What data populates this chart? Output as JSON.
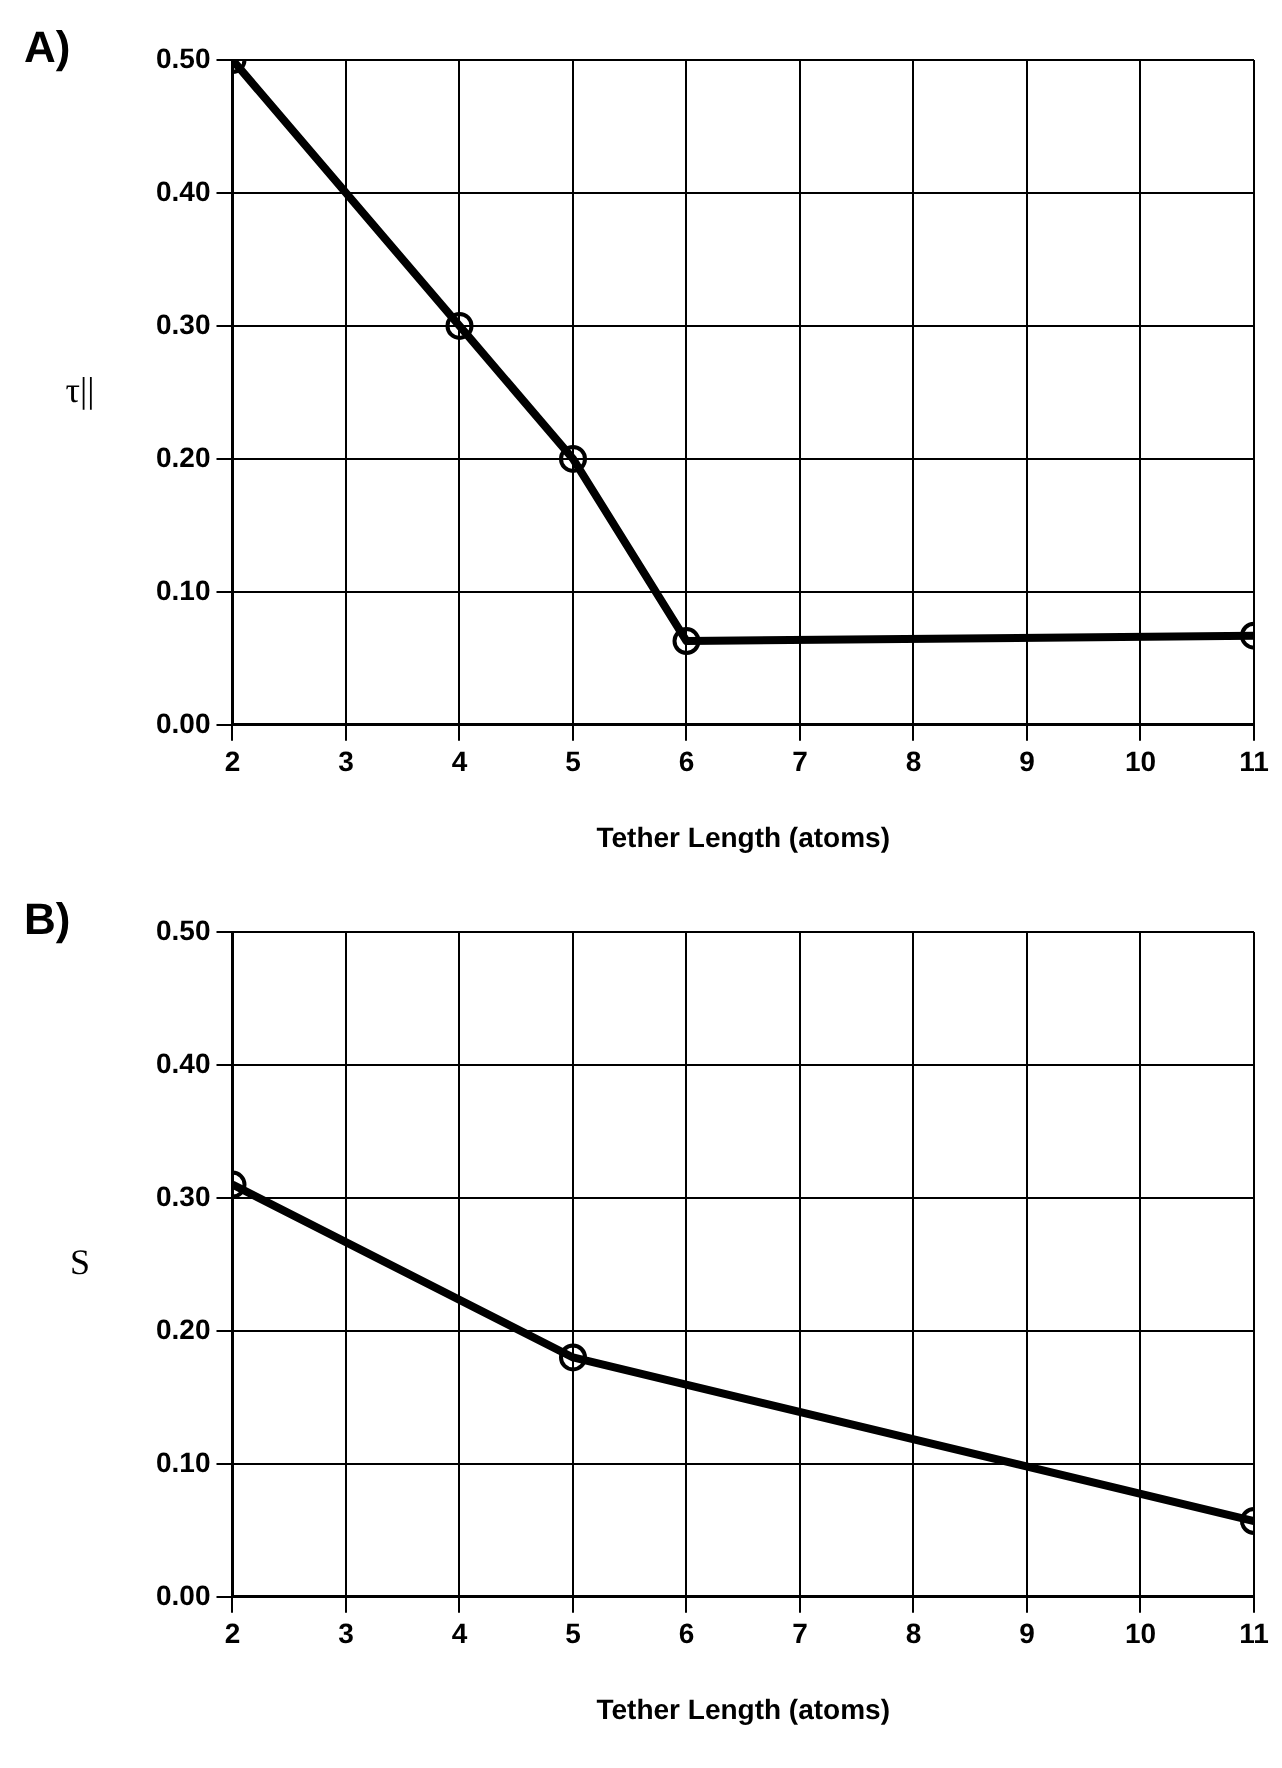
{
  "chart_data": [
    {
      "type": "line",
      "annotations": [
        "A)"
      ],
      "xlabel": "Tether Length (atoms)",
      "ylabel": "τ||",
      "x": [
        2,
        4,
        5,
        6,
        11
      ],
      "series": [
        {
          "color": "#000000",
          "values": [
            0.5,
            0.3,
            0.2,
            0.063,
            0.067
          ]
        }
      ],
      "xlim": [
        2,
        11
      ],
      "xticks": [
        2,
        3,
        4,
        5,
        6,
        7,
        8,
        9,
        10,
        11
      ],
      "ylim": [
        0,
        0.5
      ],
      "yticks": [
        {
          "value": 0,
          "label": "0.00"
        },
        {
          "value": 0.1,
          "label": "0.10"
        },
        {
          "value": 0.2,
          "label": "0.20"
        },
        {
          "value": 0.3,
          "label": "0.30"
        },
        {
          "value": 0.4,
          "label": "0.40"
        },
        {
          "value": 0.5,
          "label": "0.50"
        }
      ],
      "grid": true,
      "legend": false,
      "marker": "circle",
      "line_style": "solid"
    },
    {
      "type": "line",
      "annotations": [
        "B)"
      ],
      "xlabel": "Tether Length (atoms)",
      "ylabel": "S",
      "x": [
        2,
        5,
        11
      ],
      "series": [
        {
          "color": "#000000",
          "values": [
            0.31,
            0.18,
            0.057
          ]
        }
      ],
      "xlim": [
        2,
        11
      ],
      "xticks": [
        2,
        3,
        4,
        5,
        6,
        7,
        8,
        9,
        10,
        11
      ],
      "ylim": [
        0,
        0.5
      ],
      "yticks": [
        {
          "value": 0,
          "label": "0.00"
        },
        {
          "value": 0.1,
          "label": "0.10"
        },
        {
          "value": 0.2,
          "label": "0.20"
        },
        {
          "value": 0.3,
          "label": "0.30"
        },
        {
          "value": 0.4,
          "label": "0.40"
        },
        {
          "value": 0.5,
          "label": "0.50"
        }
      ],
      "grid": true,
      "legend": false,
      "marker": "circle",
      "line_style": "solid"
    }
  ]
}
